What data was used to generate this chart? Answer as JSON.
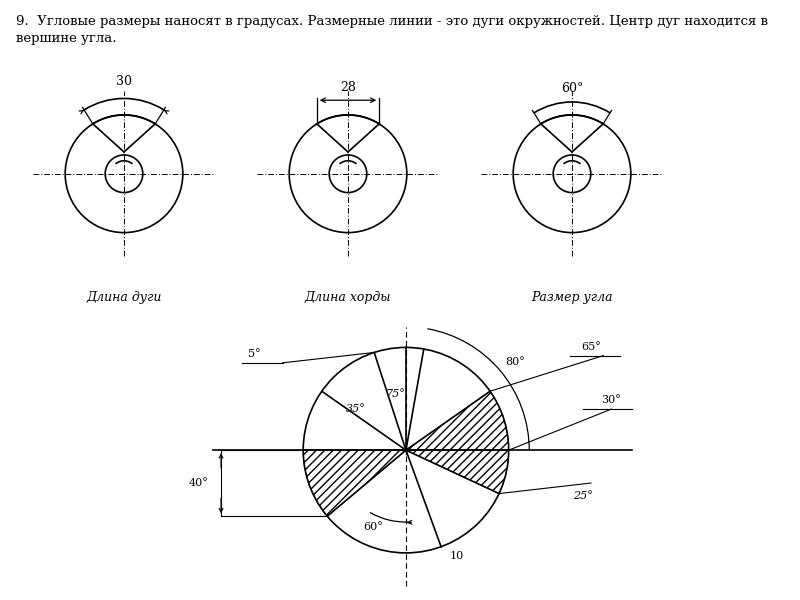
{
  "title_text": "9.  Угловые размеры наносят в градусах. Размерные линии - это дуги окружностей. Центр дуг находится в вершине угла.",
  "label1": "Длина дуги",
  "label2": "Длина хорды",
  "label3": "Размер угла",
  "dim1": "30",
  "dim2": "28",
  "dim3": "60°",
  "bg_color": "#ffffff",
  "line_color": "#000000"
}
